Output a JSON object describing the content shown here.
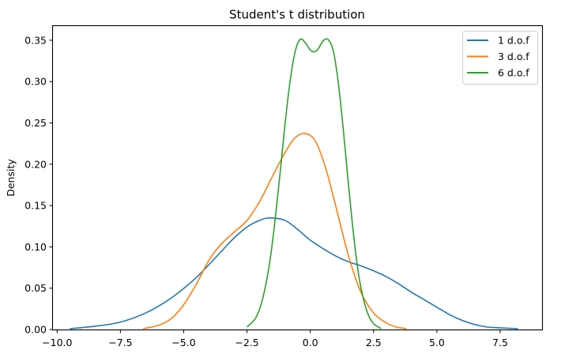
{
  "chart_data": {
    "type": "line",
    "title": "Student's t distribution",
    "xlabel": "",
    "ylabel": "Density",
    "xlim": [
      -10.5,
      9.0
    ],
    "ylim": [
      0.0,
      0.368
    ],
    "grid": false,
    "legend_position": "upper right",
    "x_ticks": [
      -10.0,
      -7.5,
      -5.0,
      -2.5,
      0.0,
      2.5,
      5.0,
      7.5
    ],
    "x_tick_labels": [
      "−10.0",
      "−7.5",
      "−5.0",
      "−2.5",
      "0.0",
      "2.5",
      "5.0",
      "7.5"
    ],
    "y_ticks": [
      0.0,
      0.05,
      0.1,
      0.15,
      0.2,
      0.25,
      0.3,
      0.35
    ],
    "y_tick_labels": [
      "0.00",
      "0.05",
      "0.10",
      "0.15",
      "0.20",
      "0.25",
      "0.30",
      "0.35"
    ],
    "series": [
      {
        "name": "1 d.o.f",
        "color": "#1f77b4",
        "x": [
          -9.5,
          -8.5,
          -7.5,
          -6.5,
          -5.5,
          -4.5,
          -3.5,
          -3.0,
          -2.5,
          -2.0,
          -1.6,
          -1.0,
          -0.5,
          0.0,
          0.5,
          1.0,
          1.5,
          2.0,
          2.5,
          3.0,
          3.5,
          4.0,
          4.5,
          5.0,
          5.5,
          6.0,
          6.5,
          7.0,
          7.5,
          8.2
        ],
        "y": [
          0.001,
          0.004,
          0.009,
          0.02,
          0.038,
          0.063,
          0.095,
          0.111,
          0.124,
          0.132,
          0.135,
          0.132,
          0.121,
          0.108,
          0.098,
          0.089,
          0.082,
          0.077,
          0.071,
          0.064,
          0.055,
          0.045,
          0.036,
          0.027,
          0.018,
          0.011,
          0.006,
          0.003,
          0.002,
          0.001
        ]
      },
      {
        "name": "3 d.o.f",
        "color": "#ff7f0e",
        "x": [
          -6.6,
          -6.0,
          -5.5,
          -5.0,
          -4.5,
          -4.0,
          -3.5,
          -3.0,
          -2.5,
          -2.0,
          -1.5,
          -1.0,
          -0.6,
          -0.2,
          0.2,
          0.6,
          1.0,
          1.5,
          2.0,
          2.5,
          3.0,
          3.4,
          3.8
        ],
        "y": [
          0.001,
          0.005,
          0.013,
          0.03,
          0.055,
          0.084,
          0.104,
          0.118,
          0.132,
          0.155,
          0.185,
          0.214,
          0.232,
          0.237,
          0.228,
          0.196,
          0.15,
          0.09,
          0.045,
          0.02,
          0.008,
          0.003,
          0.001
        ]
      },
      {
        "name": "6 d.o.f",
        "color": "#2ca02c",
        "x": [
          -2.5,
          -2.2,
          -2.0,
          -1.8,
          -1.6,
          -1.4,
          -1.2,
          -1.0,
          -0.8,
          -0.6,
          -0.4,
          -0.2,
          0.0,
          0.15,
          0.3,
          0.5,
          0.7,
          0.9,
          1.1,
          1.3,
          1.5,
          1.7,
          1.9,
          2.1,
          2.3,
          2.5,
          2.8
        ],
        "y": [
          0.003,
          0.012,
          0.025,
          0.048,
          0.082,
          0.13,
          0.187,
          0.248,
          0.3,
          0.336,
          0.351,
          0.347,
          0.338,
          0.336,
          0.339,
          0.349,
          0.351,
          0.338,
          0.3,
          0.243,
          0.178,
          0.117,
          0.068,
          0.037,
          0.017,
          0.007,
          0.001
        ]
      }
    ]
  },
  "legend": {
    "items": [
      {
        "label": "1 d.o.f",
        "color": "#1f77b4"
      },
      {
        "label": "3 d.o.f",
        "color": "#ff7f0e"
      },
      {
        "label": "6 d.o.f",
        "color": "#2ca02c"
      }
    ]
  }
}
